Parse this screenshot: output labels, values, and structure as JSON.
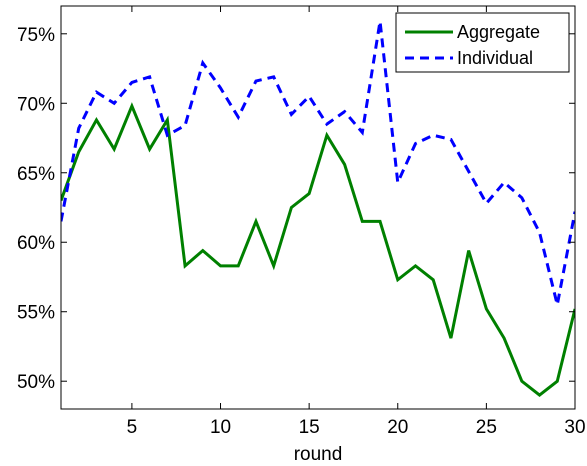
{
  "chart_data": {
    "type": "line",
    "xlabel": "round",
    "ylabel": "",
    "title": "",
    "xlim": [
      1,
      30
    ],
    "ylim": [
      0.48,
      0.77
    ],
    "xticks": [
      5,
      10,
      15,
      20,
      25,
      30
    ],
    "yticks": [
      0.5,
      0.55,
      0.6,
      0.65,
      0.7,
      0.75
    ],
    "ytick_labels": [
      "50%",
      "55%",
      "60%",
      "65%",
      "70%",
      "75%"
    ],
    "grid": false,
    "legend_position": "top-right",
    "x": [
      1,
      2,
      3,
      4,
      5,
      6,
      7,
      8,
      9,
      10,
      11,
      12,
      13,
      14,
      15,
      16,
      17,
      18,
      19,
      20,
      21,
      22,
      23,
      24,
      25,
      26,
      27,
      28,
      29,
      30
    ],
    "series": [
      {
        "name": "Aggregate",
        "color": "#008000",
        "style": "solid",
        "values": [
          0.63,
          0.665,
          0.688,
          0.667,
          0.698,
          0.667,
          0.688,
          0.583,
          0.594,
          0.583,
          0.583,
          0.615,
          0.583,
          0.625,
          0.635,
          0.677,
          0.656,
          0.615,
          0.615,
          0.573,
          0.583,
          0.573,
          0.531,
          0.594,
          0.552,
          0.531,
          0.5,
          0.49,
          0.5,
          0.552
        ]
      },
      {
        "name": "Individual",
        "color": "#0000ff",
        "style": "dashed",
        "values": [
          0.615,
          0.682,
          0.708,
          0.7,
          0.715,
          0.719,
          0.677,
          0.684,
          0.729,
          0.711,
          0.69,
          0.716,
          0.719,
          0.692,
          0.705,
          0.685,
          0.694,
          0.679,
          0.759,
          0.643,
          0.671,
          0.677,
          0.674,
          0.651,
          0.628,
          0.643,
          0.632,
          0.607,
          0.555,
          0.622
        ]
      }
    ]
  }
}
